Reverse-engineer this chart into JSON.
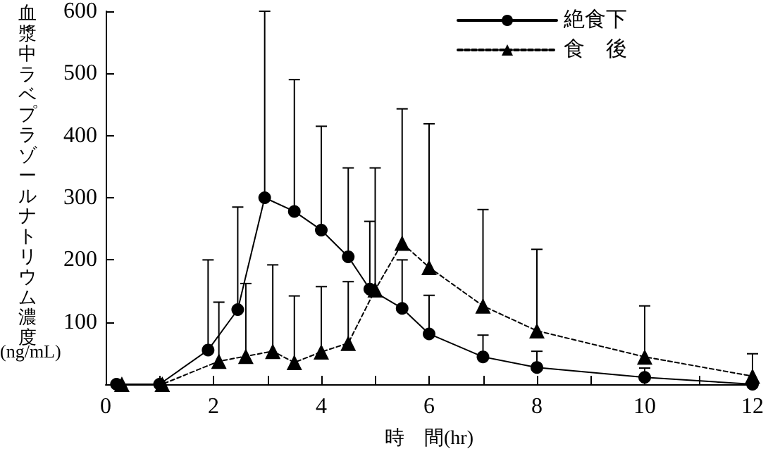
{
  "chart_data": {
    "type": "line",
    "xlabel": "時　間(hr)",
    "ylabel": "血漿中ラベプラゾールナトリウム濃度(ng/mL)",
    "xlim": [
      0,
      12
    ],
    "xticks": [
      0,
      {
        "value": 1,
        "label": null
      },
      2,
      {
        "value": 3,
        "label": null
      },
      4,
      {
        "value": 5,
        "label": null
      },
      6,
      {
        "value": 7,
        "label": null
      },
      8,
      {
        "value": 9,
        "label": null
      },
      10,
      {
        "value": 11,
        "label": null
      },
      12
    ],
    "ylim": [
      0,
      600
    ],
    "yticks": [
      {
        "value": 0,
        "label": null
      },
      100,
      200,
      300,
      400,
      500,
      600
    ],
    "grid": false,
    "legend": "top right",
    "series": [
      {
        "name": "絶食下",
        "color": "#000000",
        "marker": "circle",
        "line_style": "solid",
        "x": [
          0.2,
          1,
          1.9,
          2.45,
          2.95,
          3.5,
          4,
          4.5,
          4.9,
          5.5,
          6,
          7,
          8,
          10,
          12
        ],
        "values": [
          0,
          0,
          55,
          120,
          300,
          278,
          248,
          205,
          153,
          122,
          81,
          44,
          27,
          11,
          0
        ],
        "errors": [
          null,
          null,
          [
            55,
            200
          ],
          [
            120,
            285
          ],
          [
            300,
            600
          ],
          [
            278,
            490
          ],
          [
            248,
            415
          ],
          [
            205,
            348
          ],
          [
            153,
            262
          ],
          [
            122,
            200
          ],
          [
            81,
            143
          ],
          [
            44,
            79
          ],
          [
            27,
            53
          ],
          [
            11,
            26
          ],
          null
        ]
      },
      {
        "name": "食　後",
        "color": "#000000",
        "marker": "triangle",
        "line_style": "dashed",
        "x": [
          0.3,
          1.05,
          2.1,
          2.6,
          3.1,
          3.5,
          4,
          4.5,
          5,
          5.5,
          6,
          7,
          8,
          10,
          12
        ],
        "values": [
          0,
          0,
          37,
          45,
          53,
          35,
          52,
          66,
          152,
          227,
          188,
          126,
          86,
          44,
          13
        ],
        "errors": [
          null,
          null,
          [
            37,
            132
          ],
          [
            45,
            162
          ],
          [
            53,
            192
          ],
          [
            35,
            142
          ],
          [
            52,
            157
          ],
          [
            66,
            165
          ],
          [
            152,
            348
          ],
          [
            227,
            443
          ],
          [
            188,
            419
          ],
          [
            126,
            281
          ],
          [
            86,
            217
          ],
          [
            44,
            126
          ],
          [
            13,
            49
          ]
        ]
      }
    ]
  }
}
